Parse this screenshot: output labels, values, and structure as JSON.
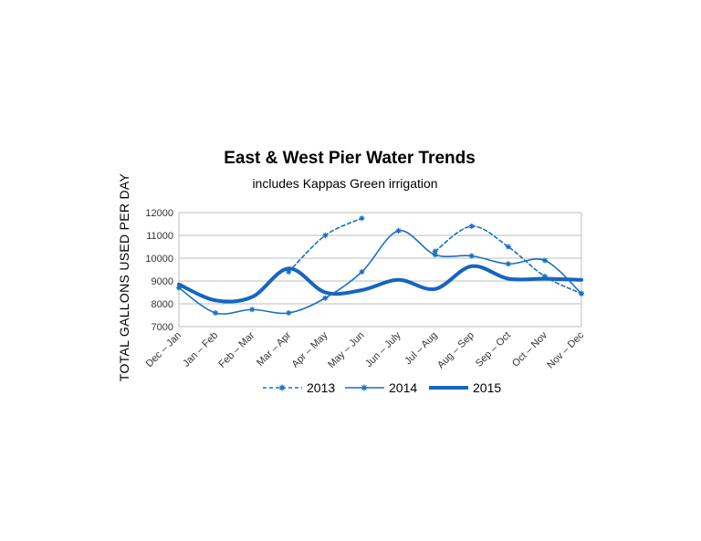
{
  "chart_data": {
    "type": "line",
    "title": "East & West Pier Water Trends",
    "subtitle": "includes Kappas Green irrigation",
    "ylabel": "TOTAL GALLONS USED PER DAY",
    "xlabel": "",
    "ylim": [
      7000,
      12000
    ],
    "yticks": [
      7000,
      8000,
      9000,
      10000,
      11000,
      12000
    ],
    "grid": true,
    "legend_position": "bottom",
    "categories": [
      "Dec – Jan",
      "Jan – Feb",
      "Feb – Mar",
      "Mar – Apr",
      "Apr – May",
      "May – Jun",
      "Jun – July",
      "Jul – Aug",
      "Aug – Sep",
      "Sep – Oct",
      "Oct – Nov",
      "Nov – Dec"
    ],
    "series": [
      {
        "name": "2013",
        "style": "dashed",
        "color": "#1a6fc4",
        "values": [
          null,
          null,
          null,
          9400,
          11000,
          11750,
          null,
          10300,
          11400,
          10500,
          9200,
          8450
        ]
      },
      {
        "name": "2014",
        "style": "solid",
        "color": "#1a6fc4",
        "values": [
          8700,
          7600,
          7750,
          7600,
          8250,
          9400,
          11200,
          10150,
          10100,
          9750,
          9900,
          8450
        ]
      },
      {
        "name": "2015",
        "style": "thick",
        "color": "#1565c0",
        "values": [
          8850,
          8150,
          8300,
          9550,
          8500,
          8600,
          9050,
          8650,
          9650,
          9100,
          9100,
          9050
        ]
      }
    ]
  }
}
